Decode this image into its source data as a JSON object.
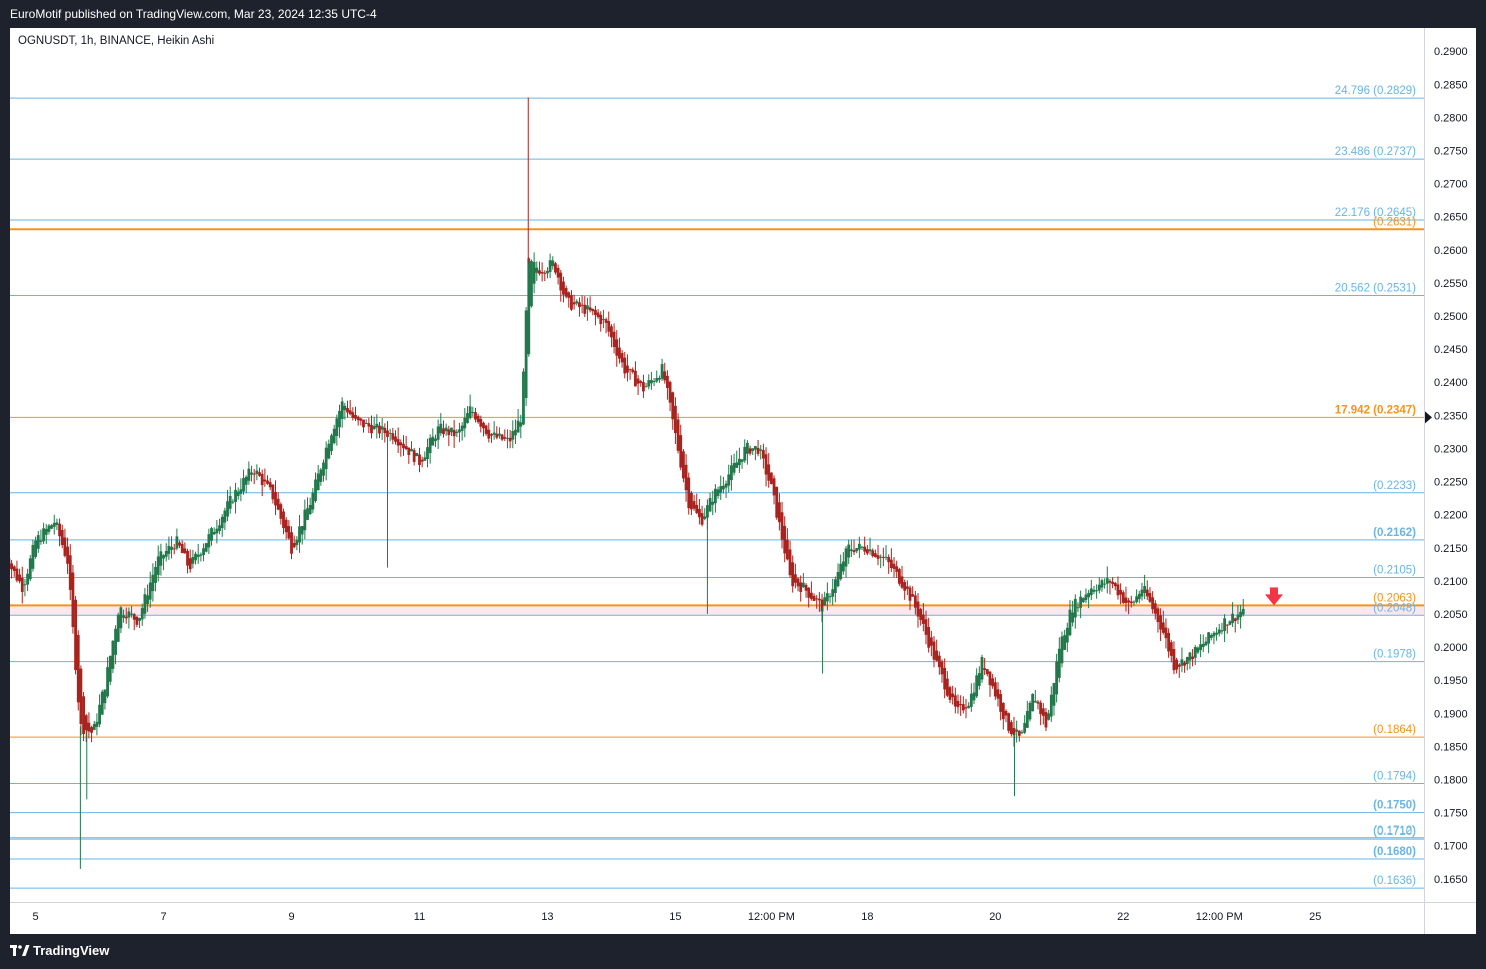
{
  "header": {
    "published": "EuroMotif published on TradingView.com, Mar 23, 2024 12:35 UTC-4"
  },
  "symbol": {
    "label": "OGNUSDT, 1h, BINANCE, Heikin Ashi"
  },
  "footer": {
    "brand": "TradingView",
    "logo_icon": "tradingview-logo-icon"
  },
  "colors": {
    "blue_level": "#6ab4e6",
    "orange_level": "#f7931a",
    "bull": "#22784b",
    "bear": "#a8221e",
    "highlight_band": "#fce8ec",
    "signal_arrow": "#f23645"
  },
  "signal": {
    "icon": "down-arrow-icon",
    "price": 0.2075
  },
  "chart_data": {
    "type": "candlestick",
    "style": "heikin-ashi",
    "ylim": [
      0.1615,
      0.2935
    ],
    "y_ticks": [
      "0.2900",
      "0.2850",
      "0.2800",
      "0.2750",
      "0.2700",
      "0.2650",
      "0.2600",
      "0.2550",
      "0.2500",
      "0.2450",
      "0.2400",
      "0.2350",
      "0.2300",
      "0.2250",
      "0.2200",
      "0.2150",
      "0.2100",
      "0.2050",
      "0.2000",
      "0.1950",
      "0.1900",
      "0.1850",
      "0.1800",
      "0.1750",
      "0.1700",
      "0.1650"
    ],
    "y_tick_values": [
      0.29,
      0.285,
      0.28,
      0.275,
      0.27,
      0.265,
      0.26,
      0.255,
      0.25,
      0.245,
      0.24,
      0.235,
      0.23,
      0.225,
      0.22,
      0.215,
      0.21,
      0.205,
      0.2,
      0.195,
      0.19,
      0.185,
      0.18,
      0.175,
      0.17,
      0.165
    ],
    "current_price": 0.2347,
    "x_ticks": [
      {
        "label": "5",
        "t": 0.5
      },
      {
        "label": "7",
        "t": 2.5
      },
      {
        "label": "9",
        "t": 4.5
      },
      {
        "label": "11",
        "t": 6.5
      },
      {
        "label": "13",
        "t": 8.5
      },
      {
        "label": "15",
        "t": 10.5
      },
      {
        "label": "12:00 PM",
        "t": 12.0
      },
      {
        "label": "18",
        "t": 13.5
      },
      {
        "label": "20",
        "t": 15.5
      },
      {
        "label": "22",
        "t": 17.5
      },
      {
        "label": "12:00 PM",
        "t": 19.0
      },
      {
        "label": "25",
        "t": 20.5
      }
    ],
    "x_range": [
      0.1,
      22.2
    ],
    "levels": [
      {
        "text": "24.796 (0.2829)",
        "price": 0.2829,
        "color": "blue",
        "bold": false
      },
      {
        "text": "23.486 (0.2737)",
        "price": 0.2737,
        "color": "blue",
        "bold": false
      },
      {
        "text": "22.176 (0.2645)",
        "price": 0.2645,
        "color": "blue",
        "bold": false
      },
      {
        "text": "(0.2631)",
        "price": 0.2631,
        "color": "orange",
        "bold": false
      },
      {
        "text": "20.562 (0.2531)",
        "price": 0.2531,
        "color": "blue",
        "bold": false
      },
      {
        "text": "17.942 (0.2347)",
        "price": 0.2347,
        "color": "orange",
        "bold": true
      },
      {
        "text": "(0.2233)",
        "price": 0.2233,
        "color": "blue",
        "bold": false
      },
      {
        "text": "(0.2162)",
        "price": 0.2162,
        "color": "blue",
        "bold": true
      },
      {
        "text": "(0.2105)",
        "price": 0.2105,
        "color": "blue",
        "bold": false
      },
      {
        "text": "(0.2063)",
        "price": 0.2063,
        "color": "orange",
        "bold": false
      },
      {
        "text": "(0.2048)",
        "price": 0.2048,
        "color": "blue",
        "bold": false
      },
      {
        "text": "(0.1978)",
        "price": 0.1978,
        "color": "blue",
        "bold": false
      },
      {
        "text": "(0.1864)",
        "price": 0.1864,
        "color": "orange",
        "bold": false
      },
      {
        "text": "(0.1794)",
        "price": 0.1794,
        "color": "blue",
        "bold": false
      },
      {
        "text": "(0.1750)",
        "price": 0.175,
        "color": "blue",
        "bold": true
      },
      {
        "text": "(0.1712)",
        "price": 0.1712,
        "color": "blue",
        "bold": false
      },
      {
        "text": "(0.1710)",
        "price": 0.171,
        "color": "blue",
        "bold": false
      },
      {
        "text": "(0.1680)",
        "price": 0.168,
        "color": "blue",
        "bold": true
      },
      {
        "text": "(0.1636)",
        "price": 0.1636,
        "color": "blue",
        "bold": false
      }
    ],
    "highlight_zone": [
      0.2048,
      0.2063
    ],
    "price_path": [
      [
        0.0,
        0.214
      ],
      [
        0.3,
        0.209
      ],
      [
        0.5,
        0.216
      ],
      [
        0.8,
        0.219
      ],
      [
        1.0,
        0.213
      ],
      [
        1.2,
        0.188
      ],
      [
        1.4,
        0.187
      ],
      [
        1.6,
        0.195
      ],
      [
        1.8,
        0.206
      ],
      [
        2.1,
        0.204
      ],
      [
        2.4,
        0.213
      ],
      [
        2.7,
        0.216
      ],
      [
        2.9,
        0.212
      ],
      [
        3.3,
        0.218
      ],
      [
        3.6,
        0.223
      ],
      [
        3.9,
        0.227
      ],
      [
        4.2,
        0.223
      ],
      [
        4.5,
        0.215
      ],
      [
        4.8,
        0.222
      ],
      [
        5.1,
        0.232
      ],
      [
        5.3,
        0.237
      ],
      [
        5.5,
        0.234
      ],
      [
        5.8,
        0.233
      ],
      [
        6.1,
        0.232
      ],
      [
        6.5,
        0.228
      ],
      [
        6.8,
        0.233
      ],
      [
        7.1,
        0.232
      ],
      [
        7.3,
        0.236
      ],
      [
        7.6,
        0.232
      ],
      [
        7.9,
        0.231
      ],
      [
        8.1,
        0.235
      ],
      [
        8.2,
        0.258
      ],
      [
        8.4,
        0.257
      ],
      [
        8.6,
        0.258
      ],
      [
        8.8,
        0.252
      ],
      [
        9.1,
        0.251
      ],
      [
        9.4,
        0.249
      ],
      [
        9.7,
        0.242
      ],
      [
        10.0,
        0.239
      ],
      [
        10.3,
        0.242
      ],
      [
        10.5,
        0.232
      ],
      [
        10.7,
        0.222
      ],
      [
        10.9,
        0.219
      ],
      [
        11.1,
        0.223
      ],
      [
        11.4,
        0.227
      ],
      [
        11.6,
        0.23
      ],
      [
        11.8,
        0.23
      ],
      [
        12.0,
        0.224
      ],
      [
        12.2,
        0.215
      ],
      [
        12.3,
        0.21
      ],
      [
        12.5,
        0.209
      ],
      [
        12.8,
        0.206
      ],
      [
        13.0,
        0.21
      ],
      [
        13.2,
        0.215
      ],
      [
        13.5,
        0.215
      ],
      [
        13.8,
        0.213
      ],
      [
        14.1,
        0.209
      ],
      [
        14.3,
        0.205
      ],
      [
        14.6,
        0.197
      ],
      [
        14.9,
        0.19
      ],
      [
        15.1,
        0.192
      ],
      [
        15.3,
        0.198
      ],
      [
        15.5,
        0.193
      ],
      [
        15.7,
        0.188
      ],
      [
        15.9,
        0.186
      ],
      [
        16.1,
        0.193
      ],
      [
        16.3,
        0.188
      ],
      [
        16.5,
        0.2
      ],
      [
        16.7,
        0.206
      ],
      [
        17.0,
        0.209
      ],
      [
        17.3,
        0.21
      ],
      [
        17.6,
        0.206
      ],
      [
        17.8,
        0.209
      ],
      [
        18.1,
        0.203
      ],
      [
        18.3,
        0.197
      ],
      [
        18.6,
        0.199
      ],
      [
        18.8,
        0.201
      ],
      [
        19.1,
        0.204
      ],
      [
        19.3,
        0.205
      ],
      [
        19.4,
        0.206
      ]
    ],
    "spikes": [
      {
        "t": 8.2,
        "high": 0.283
      },
      {
        "t": 1.2,
        "low": 0.1665
      },
      {
        "t": 1.3,
        "low": 0.177
      },
      {
        "t": 11.0,
        "low": 0.205
      },
      {
        "t": 6.0,
        "low": 0.212
      },
      {
        "t": 12.8,
        "low": 0.196
      },
      {
        "t": 15.8,
        "low": 0.1775
      }
    ]
  }
}
